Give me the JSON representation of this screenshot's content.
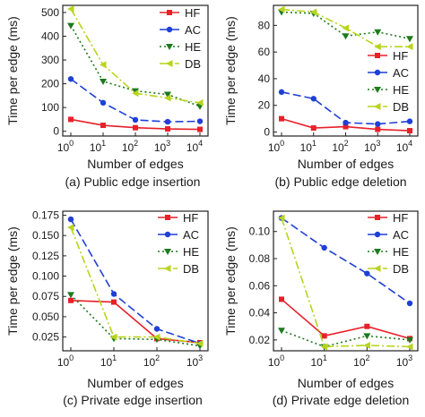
{
  "figure": {
    "series_styles": {
      "HF": {
        "color": "#e8202a",
        "dash": "",
        "marker": "square"
      },
      "AC": {
        "color": "#1f3fd6",
        "dash": "9,4",
        "marker": "circle"
      },
      "HE": {
        "color": "#1e7a1e",
        "dash": "2,3",
        "marker": "triangle-down"
      },
      "DB": {
        "color": "#b8d41c",
        "dash": "9,3,2,3",
        "marker": "triangle-left"
      }
    }
  },
  "chart_data": [
    {
      "type": "line",
      "caption": "(a) Public edge insertion",
      "xlabel": "Number of edges",
      "ylabel": "Time per edge (ms)",
      "x": [
        "10^0",
        "10^1",
        "10^2",
        "10^3",
        "10^4"
      ],
      "x_tick_labels": [
        {
          "base": "10",
          "exp": "0"
        },
        {
          "base": "10",
          "exp": "1"
        },
        {
          "base": "10",
          "exp": "2"
        },
        {
          "base": "10",
          "exp": "3"
        },
        {
          "base": "10",
          "exp": "4"
        }
      ],
      "xscale": "log",
      "ylim": [
        -20,
        530
      ],
      "yticks": [
        0,
        100,
        200,
        300,
        400,
        500
      ],
      "ytick_labels": [
        "0",
        "100",
        "200",
        "300",
        "400",
        "500"
      ],
      "legend": "top-right",
      "grid": false,
      "series": [
        {
          "name": "HF",
          "values": [
            50,
            25,
            15,
            10,
            8
          ]
        },
        {
          "name": "AC",
          "values": [
            220,
            120,
            48,
            40,
            42
          ]
        },
        {
          "name": "HE",
          "values": [
            445,
            210,
            170,
            155,
            105
          ]
        },
        {
          "name": "DB",
          "values": [
            515,
            280,
            160,
            140,
            120
          ]
        }
      ]
    },
    {
      "type": "line",
      "caption": "(b) Public edge deletion",
      "xlabel": "Number of edges",
      "ylabel": "Time per edge (ms)",
      "x": [
        "10^0",
        "10^1",
        "10^2",
        "10^3",
        "10^4"
      ],
      "x_tick_labels": [
        {
          "base": "10",
          "exp": "0"
        },
        {
          "base": "10",
          "exp": "1"
        },
        {
          "base": "10",
          "exp": "2"
        },
        {
          "base": "10",
          "exp": "3"
        },
        {
          "base": "10",
          "exp": "4"
        }
      ],
      "xscale": "log",
      "ylim": [
        -3,
        95
      ],
      "yticks": [
        0,
        20,
        40,
        60,
        80
      ],
      "ytick_labels": [
        "0",
        "20",
        "40",
        "60",
        "80"
      ],
      "legend": "center-right",
      "grid": false,
      "series": [
        {
          "name": "HF",
          "values": [
            10,
            3,
            4,
            2,
            1
          ]
        },
        {
          "name": "AC",
          "values": [
            30,
            25,
            7,
            6,
            8
          ]
        },
        {
          "name": "HE",
          "values": [
            90,
            89,
            72,
            75,
            70
          ]
        },
        {
          "name": "DB",
          "values": [
            92,
            90,
            78,
            64,
            64
          ]
        }
      ]
    },
    {
      "type": "line",
      "caption": "(c) Private edge insertion",
      "xlabel": "Number of edges",
      "ylabel": "Time per edge (ms)",
      "x": [
        "10^0",
        "10^1",
        "10^2",
        "10^3"
      ],
      "x_tick_labels": [
        {
          "base": "10",
          "exp": "0"
        },
        {
          "base": "10",
          "exp": "1"
        },
        {
          "base": "10",
          "exp": "2"
        },
        {
          "base": "10",
          "exp": "3"
        }
      ],
      "xscale": "log",
      "ylim": [
        0.008,
        0.18
      ],
      "yticks": [
        0.025,
        0.05,
        0.075,
        0.1,
        0.125,
        0.15,
        0.175
      ],
      "ytick_labels": [
        "0.025",
        "0.050",
        "0.075",
        "0.100",
        "0.125",
        "0.150",
        "0.175"
      ],
      "legend": "top-right",
      "grid": false,
      "series": [
        {
          "name": "HF",
          "values": [
            0.07,
            0.068,
            0.023,
            0.018
          ]
        },
        {
          "name": "AC",
          "values": [
            0.17,
            0.078,
            0.035,
            0.017
          ]
        },
        {
          "name": "HE",
          "values": [
            0.077,
            0.023,
            0.022,
            0.014
          ]
        },
        {
          "name": "DB",
          "values": [
            0.16,
            0.025,
            0.025,
            0.017
          ]
        }
      ]
    },
    {
      "type": "line",
      "caption": "(d) Private edge deletion",
      "xlabel": "Number of edges",
      "ylabel": "Time per edge (ms)",
      "x": [
        "10^0",
        "10^1",
        "10^2",
        "10^3"
      ],
      "x_tick_labels": [
        {
          "base": "10",
          "exp": "0"
        },
        {
          "base": "10",
          "exp": "1"
        },
        {
          "base": "10",
          "exp": "2"
        },
        {
          "base": "10",
          "exp": "3"
        }
      ],
      "xscale": "log",
      "ylim": [
        0.012,
        0.115
      ],
      "yticks": [
        0.02,
        0.04,
        0.06,
        0.08,
        0.1
      ],
      "ytick_labels": [
        "0.02",
        "0.04",
        "0.06",
        "0.08",
        "0.10"
      ],
      "legend": "top-right",
      "grid": false,
      "series": [
        {
          "name": "HF",
          "values": [
            0.05,
            0.023,
            0.03,
            0.021
          ]
        },
        {
          "name": "AC",
          "values": [
            0.11,
            0.088,
            0.069,
            0.047
          ]
        },
        {
          "name": "HE",
          "values": [
            0.027,
            0.015,
            0.023,
            0.02
          ]
        },
        {
          "name": "DB",
          "values": [
            0.11,
            0.015,
            0.016,
            0.015
          ]
        }
      ]
    }
  ]
}
